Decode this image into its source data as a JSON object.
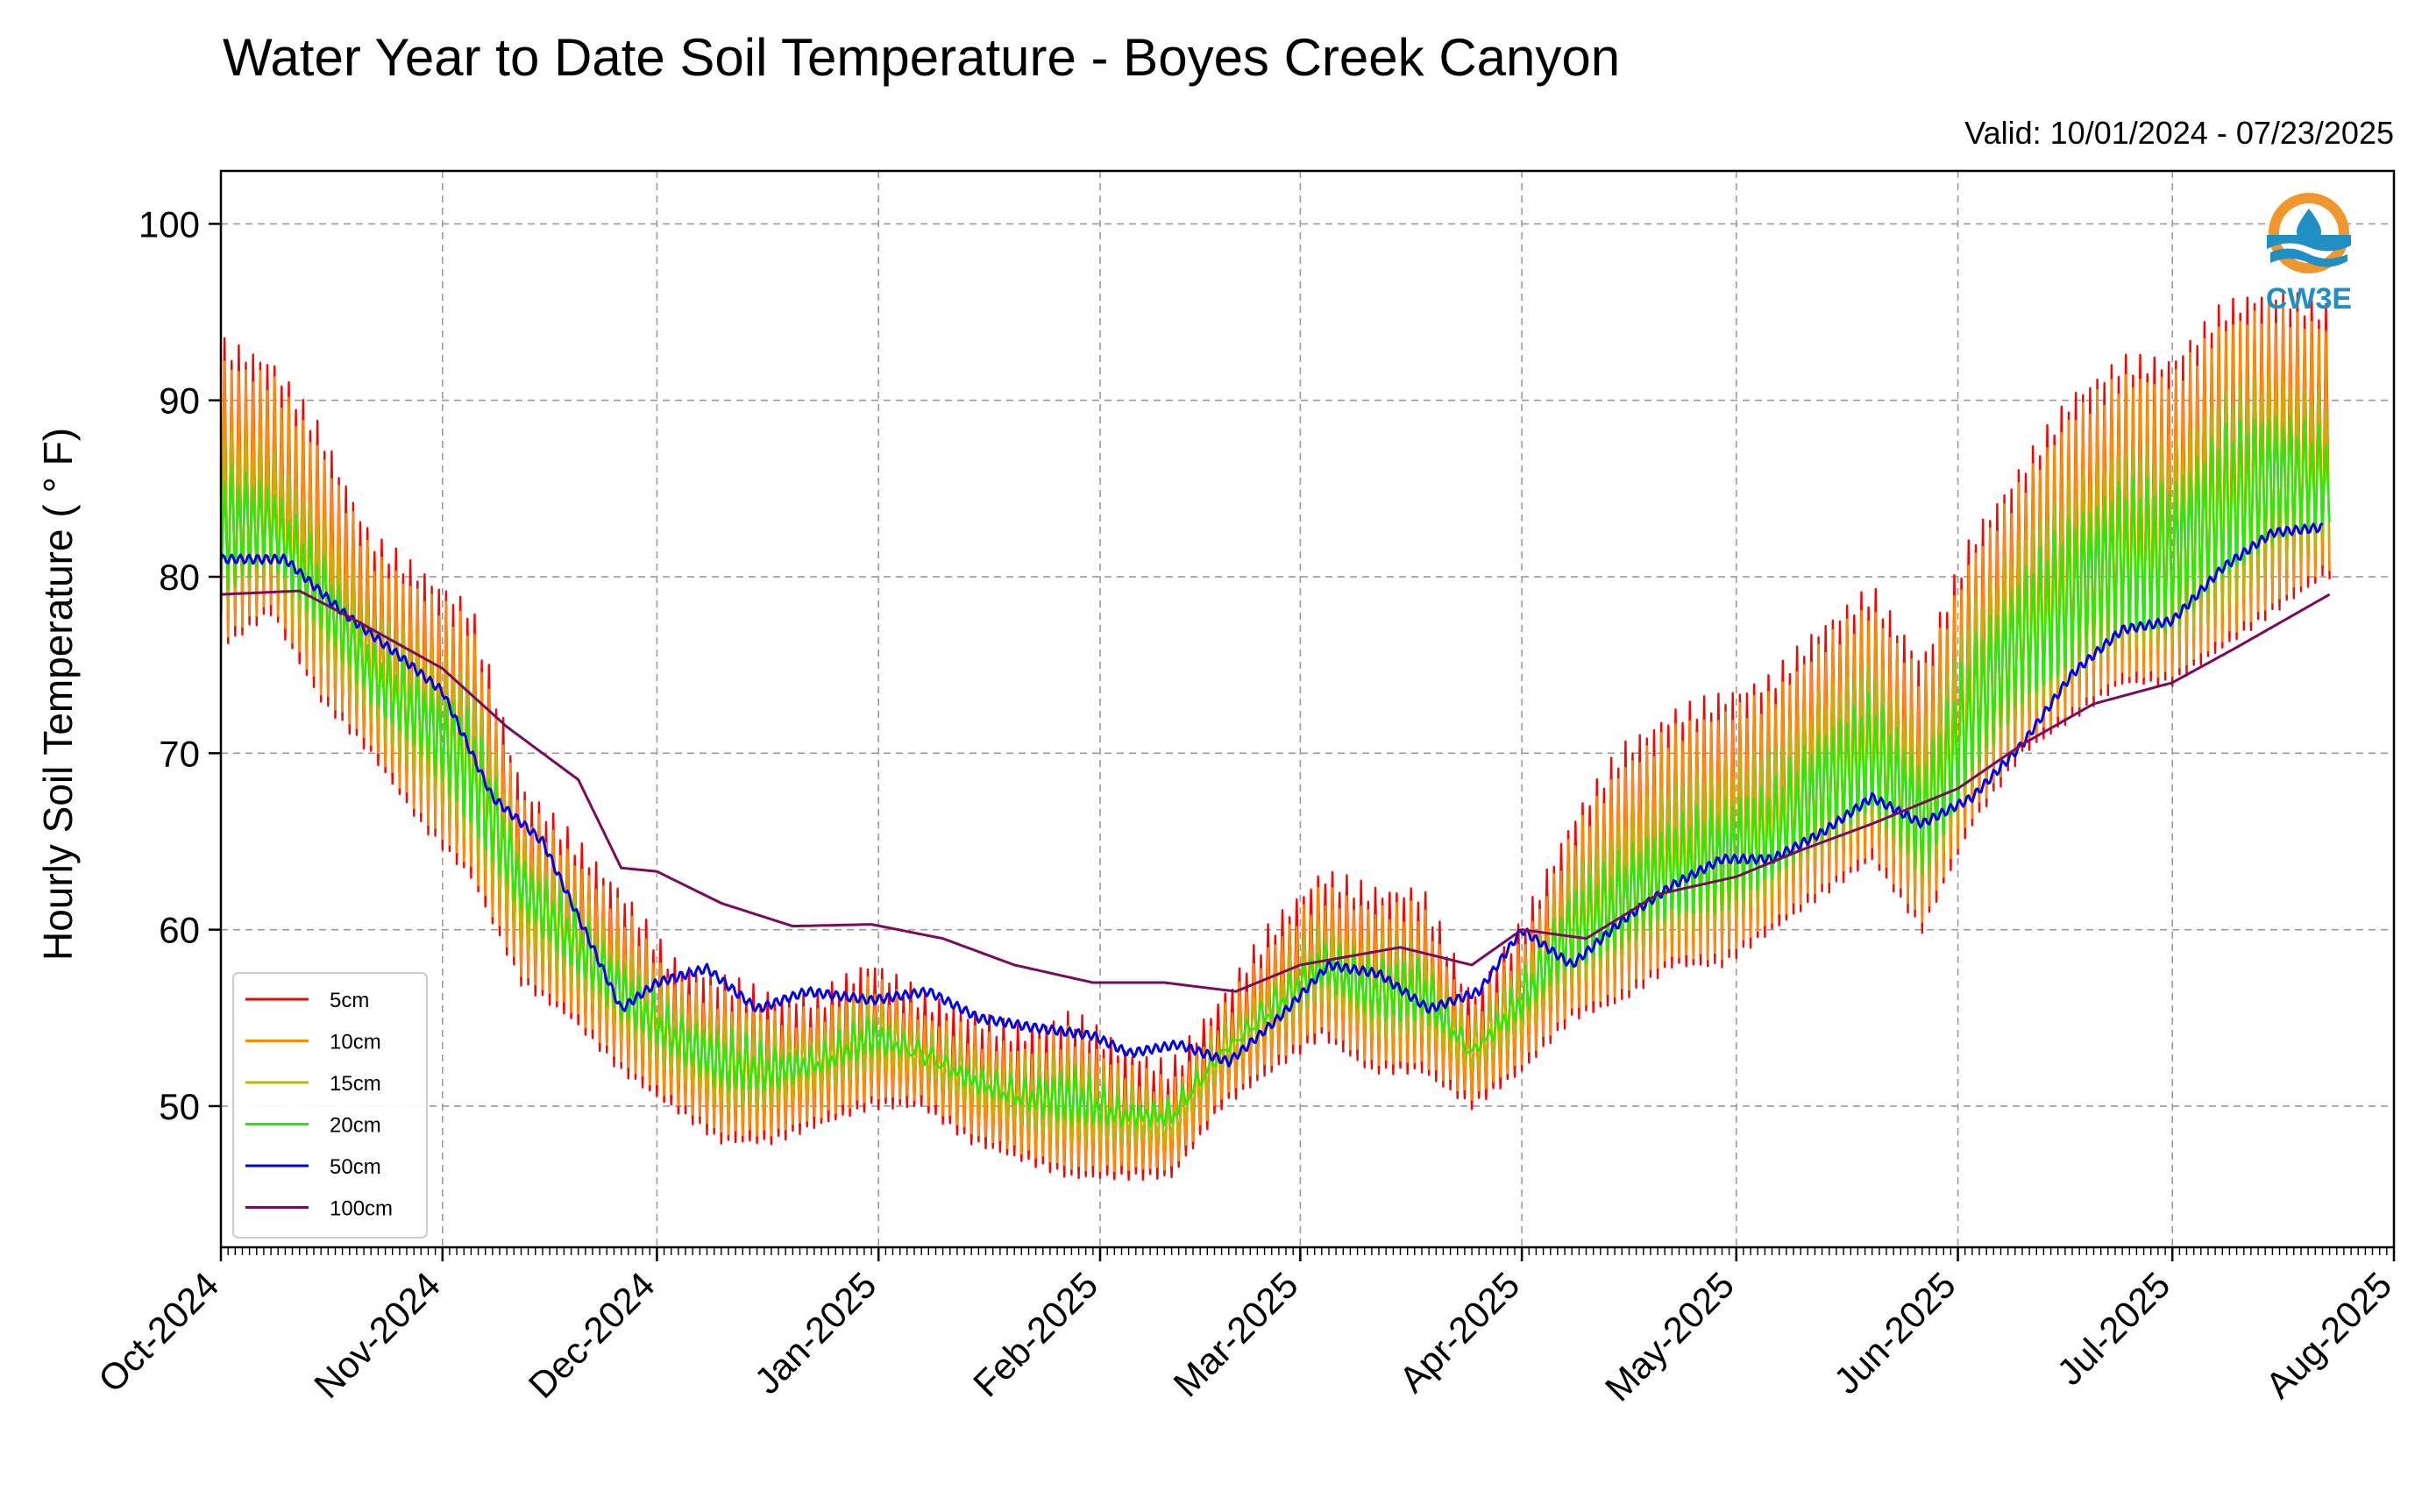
{
  "chart_data": {
    "type": "line",
    "title": "Water Year to Date Soil Temperature - Boyes Creek Canyon",
    "subtitle": "Valid: 10/01/2024 - 07/23/2025",
    "xlabel": "",
    "ylabel": "Hourly Soil Temperature ( ° F)",
    "xlim": [
      "2024-10-01",
      "2025-08-01"
    ],
    "ylim": [
      42,
      103
    ],
    "x_tick_labels": [
      "Oct-2024",
      "Nov-2024",
      "Dec-2024",
      "Jan-2025",
      "Feb-2025",
      "Mar-2025",
      "Apr-2025",
      "May-2025",
      "Jun-2025",
      "Jul-2025",
      "Aug-2025"
    ],
    "x_tick_dates": [
      "2024-10-01",
      "2024-11-01",
      "2024-12-01",
      "2025-01-01",
      "2025-02-01",
      "2025-03-01",
      "2025-04-01",
      "2025-05-01",
      "2025-06-01",
      "2025-07-01",
      "2025-08-01"
    ],
    "y_ticks": [
      50,
      60,
      70,
      80,
      90,
      100
    ],
    "y_tick_labels": [
      "50",
      "60",
      "70",
      "80",
      "90",
      "100"
    ],
    "grid": true,
    "legend_position": "lower-left",
    "logo_text": "CW3E",
    "series": [
      {
        "name": "5cm",
        "color": "#ff0000",
        "x": [
          "2024-10-01",
          "2024-10-08",
          "2024-10-15",
          "2024-10-22",
          "2024-10-29",
          "2024-11-05",
          "2024-11-12",
          "2024-11-19",
          "2024-11-26",
          "2024-12-03",
          "2024-12-10",
          "2024-12-17",
          "2024-12-24",
          "2024-12-31",
          "2025-01-07",
          "2025-01-14",
          "2025-01-21",
          "2025-01-28",
          "2025-02-04",
          "2025-02-11",
          "2025-02-18",
          "2025-02-25",
          "2025-03-04",
          "2025-03-11",
          "2025-03-18",
          "2025-03-25",
          "2025-04-01",
          "2025-04-08",
          "2025-04-15",
          "2025-04-22",
          "2025-04-29",
          "2025-05-06",
          "2025-05-13",
          "2025-05-20",
          "2025-05-27",
          "2025-06-03",
          "2025-06-10",
          "2025-06-17",
          "2025-06-24",
          "2025-07-01",
          "2025-07-08",
          "2025-07-15",
          "2025-07-22"
        ],
        "min": [
          76,
          78,
          73,
          70,
          66,
          63,
          57,
          55,
          52,
          50,
          48,
          48,
          49,
          50,
          50,
          48,
          47,
          46,
          46,
          46,
          50,
          52,
          54,
          52,
          52,
          50,
          52,
          55,
          56,
          58,
          58,
          60,
          62,
          64,
          60,
          66,
          70,
          72,
          74,
          74,
          76,
          78,
          80
        ],
        "max": [
          93,
          92,
          88,
          82,
          80,
          78,
          68,
          65,
          62,
          58,
          57,
          56,
          56,
          58,
          56,
          55,
          54,
          55,
          53,
          52,
          56,
          60,
          63,
          62,
          62,
          56,
          60,
          66,
          70,
          72,
          73,
          74,
          77,
          79,
          75,
          82,
          86,
          90,
          92,
          92,
          95,
          96,
          95
        ]
      },
      {
        "name": "10cm",
        "color": "#ff8c00",
        "x": [
          "2024-10-01",
          "2024-10-08",
          "2024-10-15",
          "2024-10-22",
          "2024-10-29",
          "2024-11-05",
          "2024-11-12",
          "2024-11-19",
          "2024-11-26",
          "2024-12-03",
          "2024-12-10",
          "2024-12-17",
          "2024-12-24",
          "2024-12-31",
          "2025-01-07",
          "2025-01-14",
          "2025-01-21",
          "2025-01-28",
          "2025-02-04",
          "2025-02-11",
          "2025-02-18",
          "2025-02-25",
          "2025-03-04",
          "2025-03-11",
          "2025-03-18",
          "2025-03-25",
          "2025-04-01",
          "2025-04-08",
          "2025-04-15",
          "2025-04-22",
          "2025-04-29",
          "2025-05-06",
          "2025-05-13",
          "2025-05-20",
          "2025-05-27",
          "2025-06-03",
          "2025-06-10",
          "2025-06-17",
          "2025-06-24",
          "2025-07-01",
          "2025-07-08",
          "2025-07-15",
          "2025-07-22"
        ],
        "min": [
          76.5,
          78.5,
          73.5,
          70.5,
          66.5,
          63.5,
          57.5,
          55.5,
          52.5,
          50.5,
          48.5,
          48.5,
          49.5,
          50.5,
          50.5,
          48.5,
          47.5,
          46.5,
          46.5,
          46.5,
          50.5,
          52.5,
          54.5,
          52.5,
          52.5,
          50.5,
          52.5,
          55.5,
          56.5,
          58.5,
          58.5,
          60.5,
          62.5,
          64.5,
          60.5,
          66.5,
          70.5,
          72.5,
          74.5,
          74.5,
          76.5,
          78.5,
          80.5
        ],
        "max": [
          92,
          91,
          87,
          81,
          79,
          77,
          67,
          64,
          61,
          57,
          56,
          55,
          55,
          57,
          55,
          54,
          53,
          54,
          52,
          51,
          55,
          59,
          62,
          61,
          61,
          55,
          59,
          65,
          69,
          71,
          72,
          73,
          76,
          78,
          74,
          81,
          85,
          89,
          91,
          91,
          94,
          95,
          94
        ]
      },
      {
        "name": "15cm",
        "color": "#b8b800",
        "x": [
          "2024-10-01",
          "2024-10-08",
          "2024-10-15",
          "2024-10-22",
          "2024-10-29",
          "2024-11-05",
          "2024-11-12",
          "2024-11-19",
          "2024-11-26",
          "2024-12-03",
          "2024-12-10",
          "2024-12-17",
          "2024-12-24",
          "2024-12-31",
          "2025-01-07",
          "2025-01-14",
          "2025-01-21",
          "2025-01-28",
          "2025-02-04",
          "2025-02-11",
          "2025-02-18",
          "2025-02-25",
          "2025-03-04",
          "2025-03-11",
          "2025-03-18",
          "2025-03-25",
          "2025-04-01",
          "2025-04-08",
          "2025-04-15",
          "2025-04-22",
          "2025-04-29",
          "2025-05-06",
          "2025-05-13",
          "2025-05-20",
          "2025-05-27",
          "2025-06-03",
          "2025-06-10",
          "2025-06-17",
          "2025-06-24",
          "2025-07-01",
          "2025-07-08",
          "2025-07-15",
          "2025-07-22"
        ],
        "min": [
          78,
          80,
          75,
          72,
          68,
          65,
          59,
          57,
          54,
          52,
          50,
          50,
          51,
          52,
          52,
          50,
          49,
          48,
          48,
          48,
          52,
          54,
          56,
          54,
          54,
          52,
          54,
          57,
          58,
          60,
          60,
          62,
          64,
          66,
          62,
          68,
          72,
          74,
          76,
          76,
          78,
          80,
          82
        ],
        "max": [
          88,
          87,
          83,
          78,
          76,
          74,
          65,
          62,
          59,
          56,
          55,
          54,
          54,
          56,
          54,
          53,
          52,
          53,
          51,
          50,
          54,
          57,
          60,
          59,
          59,
          54,
          58,
          63,
          66,
          68,
          69,
          70,
          73,
          75,
          71,
          78,
          82,
          85,
          87,
          87,
          90,
          91,
          90
        ]
      },
      {
        "name": "20cm",
        "color": "#22ee00",
        "x": [
          "2024-10-01",
          "2024-10-08",
          "2024-10-15",
          "2024-10-22",
          "2024-10-29",
          "2024-11-05",
          "2024-11-12",
          "2024-11-19",
          "2024-11-26",
          "2024-12-03",
          "2024-12-10",
          "2024-12-17",
          "2024-12-24",
          "2024-12-31",
          "2025-01-07",
          "2025-01-14",
          "2025-01-21",
          "2025-01-28",
          "2025-02-04",
          "2025-02-11",
          "2025-02-18",
          "2025-02-25",
          "2025-03-04",
          "2025-03-11",
          "2025-03-18",
          "2025-03-25",
          "2025-04-01",
          "2025-04-08",
          "2025-04-15",
          "2025-04-22",
          "2025-04-29",
          "2025-05-06",
          "2025-05-13",
          "2025-05-20",
          "2025-05-27",
          "2025-06-03",
          "2025-06-10",
          "2025-06-17",
          "2025-06-24",
          "2025-07-01",
          "2025-07-08",
          "2025-07-15",
          "2025-07-22"
        ],
        "min": [
          79,
          81,
          77,
          73,
          70,
          66,
          61,
          58,
          55,
          53,
          51,
          51,
          52,
          53,
          53,
          51,
          50,
          49,
          49,
          49,
          53,
          55,
          57,
          55,
          55,
          53,
          55,
          58,
          59,
          61,
          61,
          63,
          65,
          67,
          63,
          69,
          73,
          75,
          77,
          77,
          80,
          82,
          83
        ],
        "max": [
          86,
          85,
          81,
          76,
          74,
          72,
          64,
          61,
          58,
          55,
          54,
          53,
          53,
          55,
          53,
          52,
          51,
          52,
          50,
          50,
          53,
          56,
          59,
          58,
          58,
          53,
          57,
          62,
          64,
          66,
          67,
          68,
          71,
          73,
          69,
          76,
          80,
          83,
          85,
          85,
          88,
          89,
          88
        ]
      },
      {
        "name": "50cm",
        "color": "#0000ee",
        "x": [
          "2024-10-01",
          "2024-10-10",
          "2024-10-18",
          "2024-10-26",
          "2024-11-01",
          "2024-11-08",
          "2024-11-15",
          "2024-11-22",
          "2024-11-26",
          "2024-12-01",
          "2024-12-08",
          "2024-12-15",
          "2024-12-22",
          "2024-12-31",
          "2025-01-08",
          "2025-01-15",
          "2025-01-22",
          "2025-01-31",
          "2025-02-05",
          "2025-02-12",
          "2025-02-19",
          "2025-02-26",
          "2025-03-05",
          "2025-03-12",
          "2025-03-19",
          "2025-03-26",
          "2025-04-01",
          "2025-04-08",
          "2025-04-15",
          "2025-04-22",
          "2025-04-29",
          "2025-05-06",
          "2025-05-13",
          "2025-05-20",
          "2025-05-27",
          "2025-06-03",
          "2025-06-10",
          "2025-06-17",
          "2025-06-24",
          "2025-07-01",
          "2025-07-08",
          "2025-07-15",
          "2025-07-22"
        ],
        "y": [
          81,
          81,
          78,
          75.5,
          73.5,
          67.5,
          65,
          59,
          55.5,
          57,
          57.8,
          55.5,
          56.5,
          56,
          56.5,
          55,
          54.5,
          54,
          53,
          53.5,
          52.5,
          55,
          58,
          57.5,
          55.5,
          56.5,
          60,
          58,
          60.5,
          62.5,
          64,
          64,
          65.5,
          67.5,
          66,
          67.5,
          70.5,
          74.5,
          77,
          77.5,
          80.5,
          82.5,
          82.8
        ]
      },
      {
        "name": "100cm",
        "color": "#7a0a5c",
        "x": [
          "2024-10-01",
          "2024-10-12",
          "2024-10-20",
          "2024-11-01",
          "2024-11-10",
          "2024-11-20",
          "2024-11-26",
          "2024-12-01",
          "2024-12-10",
          "2024-12-20",
          "2024-12-31",
          "2025-01-10",
          "2025-01-20",
          "2025-01-31",
          "2025-02-10",
          "2025-02-20",
          "2025-03-01",
          "2025-03-15",
          "2025-03-25",
          "2025-04-01",
          "2025-04-10",
          "2025-04-20",
          "2025-05-01",
          "2025-05-10",
          "2025-05-20",
          "2025-06-01",
          "2025-06-10",
          "2025-06-20",
          "2025-07-01",
          "2025-07-10",
          "2025-07-23"
        ],
        "y": [
          79,
          79.2,
          77.5,
          74.8,
          71.5,
          68.5,
          63.5,
          63.3,
          61.5,
          60.2,
          60.3,
          59.5,
          58,
          57,
          57,
          56.5,
          58,
          59,
          58,
          60,
          59.5,
          62,
          63,
          64.5,
          66,
          68,
          70.5,
          72.8,
          74,
          76,
          79
        ]
      }
    ]
  }
}
